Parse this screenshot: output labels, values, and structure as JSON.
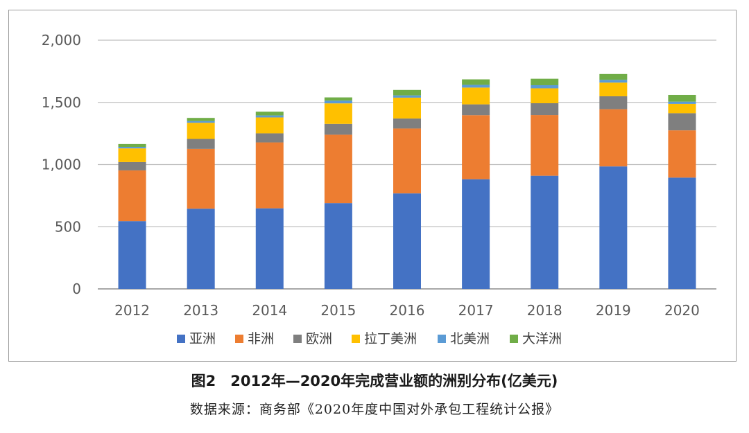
{
  "caption": "图2　2012年—2020年完成营业额的洲别分布(亿美元)",
  "source": "数据来源：商务部《2020年度中国对外承包工程统计公报》",
  "chart_data": {
    "type": "bar",
    "stacked": true,
    "categories": [
      "2012",
      "2013",
      "2014",
      "2015",
      "2016",
      "2017",
      "2018",
      "2019",
      "2020"
    ],
    "ylim": [
      0,
      2000
    ],
    "yticks": [
      0,
      500,
      1000,
      1500,
      2000
    ],
    "ytick_labels": [
      "0",
      "500",
      "1,000",
      "1,500",
      "2,000"
    ],
    "grid": true,
    "legend_position": "bottom",
    "series": [
      {
        "name": "亚洲",
        "color": "#4472C4",
        "values": [
          545,
          645,
          648,
          690,
          768,
          882,
          910,
          985,
          895
        ]
      },
      {
        "name": "非洲",
        "color": "#ED7D31",
        "values": [
          408,
          481,
          530,
          550,
          522,
          515,
          488,
          460,
          380
        ]
      },
      {
        "name": "欧洲",
        "color": "#7F7F7F",
        "values": [
          67,
          80,
          73,
          87,
          80,
          87,
          95,
          104,
          138
        ]
      },
      {
        "name": "拉丁美洲",
        "color": "#FFC000",
        "values": [
          110,
          130,
          128,
          165,
          168,
          135,
          120,
          110,
          75
        ]
      },
      {
        "name": "北美洲",
        "color": "#5B9BD5",
        "values": [
          12,
          14,
          16,
          22,
          18,
          22,
          25,
          22,
          18
        ]
      },
      {
        "name": "大洋洲",
        "color": "#70AD47",
        "values": [
          23,
          25,
          30,
          26,
          44,
          44,
          52,
          47,
          54
        ]
      }
    ]
  }
}
